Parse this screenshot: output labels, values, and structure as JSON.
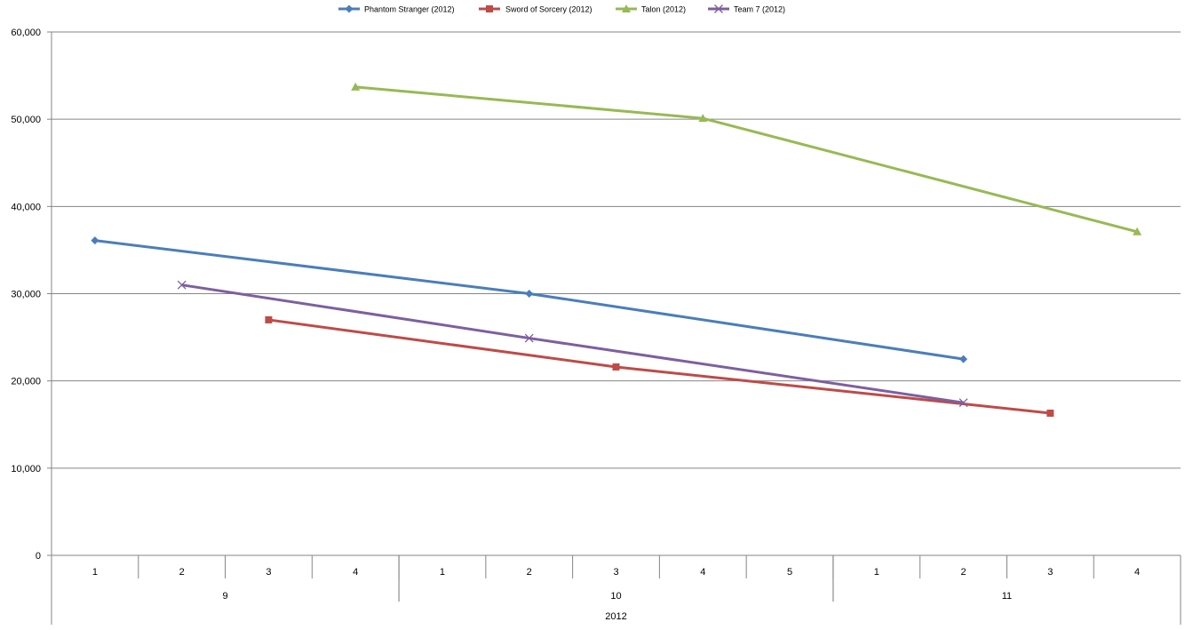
{
  "chart_data": {
    "type": "line",
    "title": "",
    "xlabel": "",
    "ylabel": "",
    "ylim": [
      0,
      60000
    ],
    "yticks": [
      0,
      10000,
      20000,
      30000,
      40000,
      50000,
      60000
    ],
    "ytick_labels": [
      "0",
      "10,000",
      "20,000",
      "30,000",
      "40,000",
      "50,000",
      "60,000"
    ],
    "grid": true,
    "legend_position": "top",
    "x_groups": [
      {
        "year": "2012",
        "months": [
          {
            "month": "9",
            "weeks": [
              "1",
              "2",
              "3",
              "4"
            ]
          },
          {
            "month": "10",
            "weeks": [
              "1",
              "2",
              "3",
              "4",
              "5"
            ]
          },
          {
            "month": "11",
            "weeks": [
              "1",
              "2",
              "3",
              "4"
            ]
          }
        ]
      }
    ],
    "series": [
      {
        "name": "Phantom Stranger (2012)",
        "color": "#4a7ebb",
        "marker": "diamond",
        "values": [
          36100,
          null,
          null,
          null,
          null,
          30000,
          null,
          null,
          null,
          null,
          22500,
          null,
          null
        ]
      },
      {
        "name": "Sword of Sorcery (2012)",
        "color": "#be4b48",
        "marker": "square",
        "values": [
          null,
          null,
          27000,
          null,
          null,
          null,
          21600,
          null,
          null,
          null,
          null,
          16300,
          null
        ]
      },
      {
        "name": "Talon (2012)",
        "color": "#98b954",
        "marker": "triangle",
        "values": [
          null,
          null,
          null,
          53700,
          null,
          null,
          null,
          50100,
          null,
          null,
          null,
          null,
          37100
        ]
      },
      {
        "name": "Team 7 (2012)",
        "color": "#7d5fa0",
        "marker": "x",
        "values": [
          null,
          31000,
          null,
          null,
          null,
          24900,
          null,
          null,
          null,
          null,
          17500,
          null,
          null
        ]
      }
    ]
  }
}
